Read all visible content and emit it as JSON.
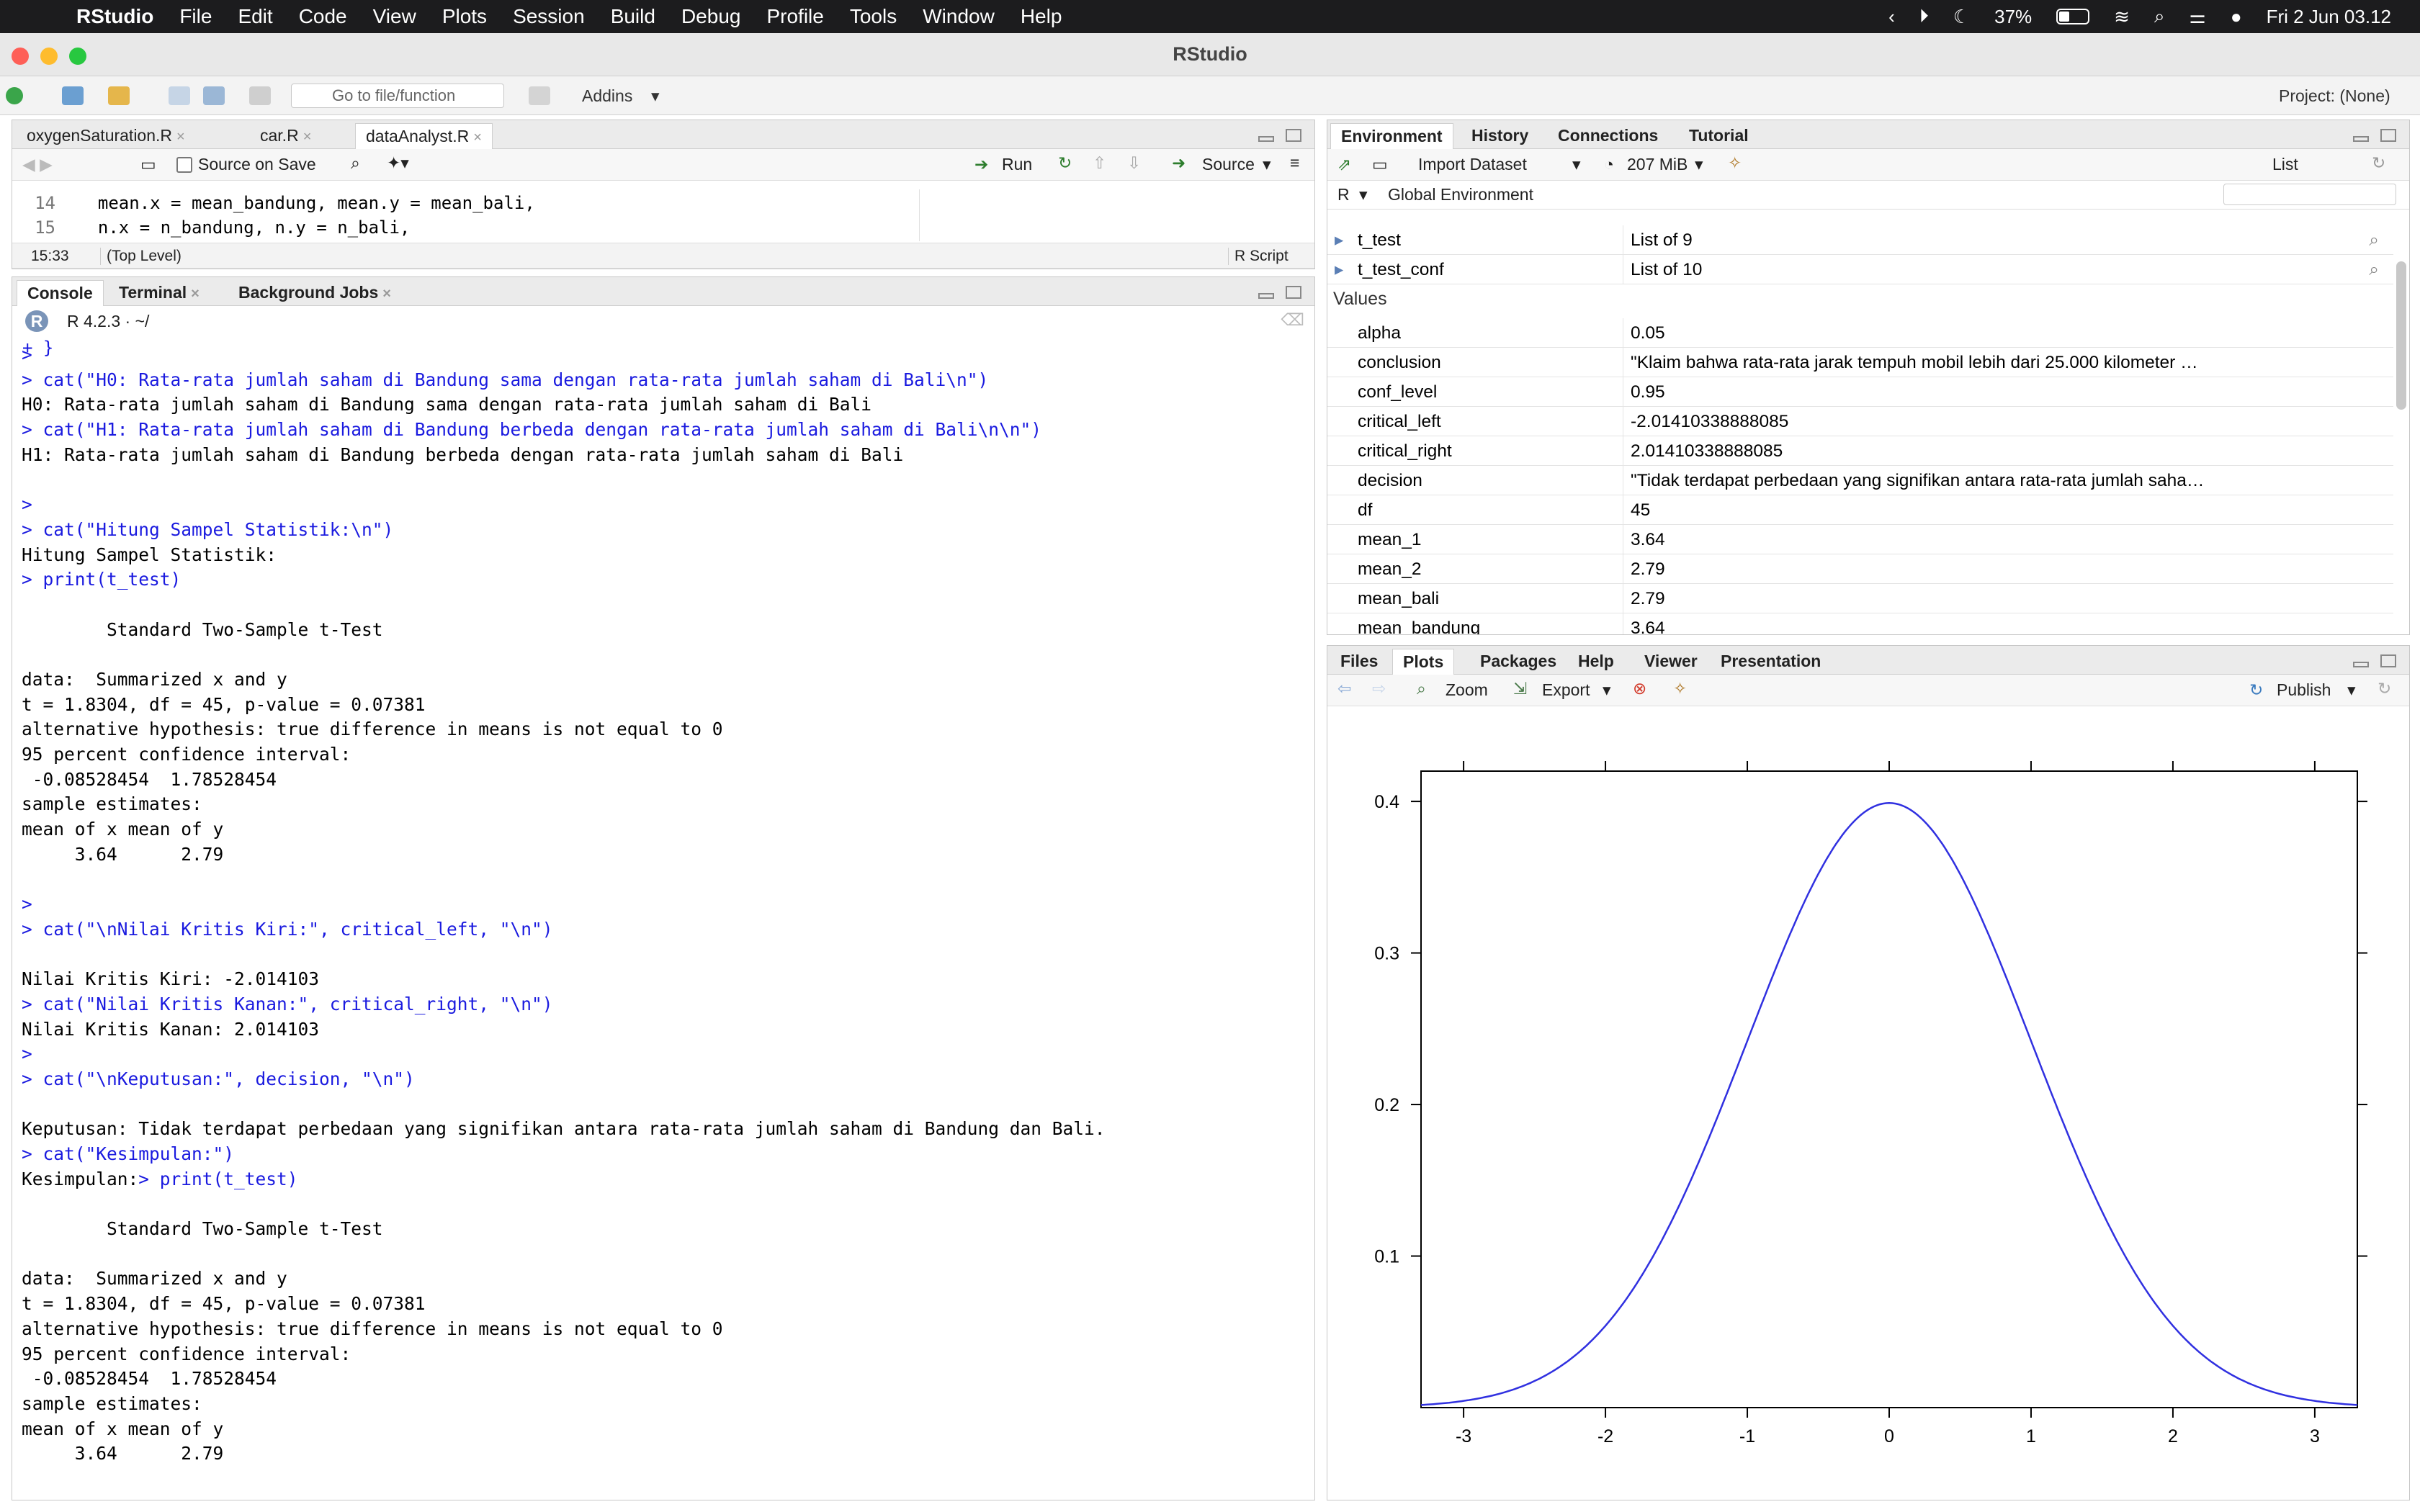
{
  "menubar": {
    "app": "RStudio",
    "items": [
      "File",
      "Edit",
      "Code",
      "View",
      "Plots",
      "Session",
      "Build",
      "Debug",
      "Profile",
      "Tools",
      "Window",
      "Help"
    ],
    "battery": "37%",
    "datetime": "Fri 2 Jun  03.12"
  },
  "window": {
    "title": "RStudio"
  },
  "toolbar": {
    "goto_placeholder": "Go to file/function",
    "addins": "Addins",
    "project": "Project: (None)"
  },
  "source": {
    "tabs": [
      "oxygenSaturation.R",
      "car.R",
      "dataAnalyst.R"
    ],
    "active_tab": "dataAnalyst.R",
    "source_on_save": "Source on Save",
    "run": "Run",
    "source_btn": "Source",
    "lines": [
      {
        "num": "14",
        "text": "  mean.x = mean_bandung, mean.y = mean_bali,"
      },
      {
        "num": "15",
        "text": "  n.x = n_bandung, n.y = n_bali,"
      }
    ],
    "cursor": "15:33",
    "scope": "(Top Level)",
    "filetype": "R Script"
  },
  "console": {
    "tabs": [
      "Console",
      "Terminal",
      "Background Jobs"
    ],
    "r_version": "R 4.2.3 · ~/",
    "lines": [
      {
        "k": "c",
        "t": ">"
      },
      {
        "k": "c",
        "t": "> cat(\"H0: Rata-rata jumlah saham di Bandung sama dengan rata-rata jumlah saham di Bali\\n\")"
      },
      {
        "k": "o",
        "t": "H0: Rata-rata jumlah saham di Bandung sama dengan rata-rata jumlah saham di Bali"
      },
      {
        "k": "c",
        "t": "> cat(\"H1: Rata-rata jumlah saham di Bandung berbeda dengan rata-rata jumlah saham di Bali\\n\\n\")"
      },
      {
        "k": "o",
        "t": "H1: Rata-rata jumlah saham di Bandung berbeda dengan rata-rata jumlah saham di Bali"
      },
      {
        "k": "o",
        "t": ""
      },
      {
        "k": "c",
        "t": ">"
      },
      {
        "k": "c",
        "t": "> cat(\"Hitung Sampel Statistik:\\n\")"
      },
      {
        "k": "o",
        "t": "Hitung Sampel Statistik:"
      },
      {
        "k": "c",
        "t": "> print(t_test)"
      },
      {
        "k": "o",
        "t": ""
      },
      {
        "k": "o",
        "t": "        Standard Two-Sample t-Test"
      },
      {
        "k": "o",
        "t": ""
      },
      {
        "k": "o",
        "t": "data:  Summarized x and y"
      },
      {
        "k": "o",
        "t": "t = 1.8304, df = 45, p-value = 0.07381"
      },
      {
        "k": "o",
        "t": "alternative hypothesis: true difference in means is not equal to 0"
      },
      {
        "k": "o",
        "t": "95 percent confidence interval:"
      },
      {
        "k": "o",
        "t": " -0.08528454  1.78528454"
      },
      {
        "k": "o",
        "t": "sample estimates:"
      },
      {
        "k": "o",
        "t": "mean of x mean of y"
      },
      {
        "k": "o",
        "t": "     3.64      2.79"
      },
      {
        "k": "o",
        "t": ""
      },
      {
        "k": "c",
        "t": ">"
      },
      {
        "k": "c",
        "t": "> cat(\"\\nNilai Kritis Kiri:\", critical_left, \"\\n\")"
      },
      {
        "k": "o",
        "t": ""
      },
      {
        "k": "o",
        "t": "Nilai Kritis Kiri: -2.014103"
      },
      {
        "k": "c",
        "t": "> cat(\"Nilai Kritis Kanan:\", critical_right, \"\\n\")"
      },
      {
        "k": "o",
        "t": "Nilai Kritis Kanan: 2.014103"
      },
      {
        "k": "c",
        "t": ">"
      },
      {
        "k": "c",
        "t": "> cat(\"\\nKeputusan:\", decision, \"\\n\")"
      },
      {
        "k": "o",
        "t": ""
      },
      {
        "k": "o",
        "t": "Keputusan: Tidak terdapat perbedaan yang signifikan antara rata-rata jumlah saham di Bandung dan Bali."
      },
      {
        "k": "c",
        "t": "> cat(\"Kesimpulan:\")"
      },
      {
        "k": "mix",
        "o": "Kesimpulan:",
        "t": "> print(t_test)"
      },
      {
        "k": "o",
        "t": ""
      },
      {
        "k": "o",
        "t": "        Standard Two-Sample t-Test"
      },
      {
        "k": "o",
        "t": ""
      },
      {
        "k": "o",
        "t": "data:  Summarized x and y"
      },
      {
        "k": "o",
        "t": "t = 1.8304, df = 45, p-value = 0.07381"
      },
      {
        "k": "o",
        "t": "alternative hypothesis: true difference in means is not equal to 0"
      },
      {
        "k": "o",
        "t": "95 percent confidence interval:"
      },
      {
        "k": "o",
        "t": " -0.08528454  1.78528454"
      },
      {
        "k": "o",
        "t": "sample estimates:"
      },
      {
        "k": "o",
        "t": "mean of x mean of y"
      },
      {
        "k": "o",
        "t": "     3.64      2.79"
      }
    ]
  },
  "environment": {
    "tabs": [
      "Environment",
      "History",
      "Connections",
      "Tutorial"
    ],
    "import_dataset": "Import Dataset",
    "memory": "207 MiB",
    "view": "List",
    "lang": "R",
    "scope": "Global Environment",
    "lists": [
      {
        "name": "t_test",
        "value": "List of  9"
      },
      {
        "name": "t_test_conf",
        "value": "List of  10"
      }
    ],
    "values_header": "Values",
    "values": [
      {
        "name": "alpha",
        "value": "0.05"
      },
      {
        "name": "conclusion",
        "value": "\"Klaim bahwa rata-rata jarak tempuh mobil lebih dari 25.000 kilometer …"
      },
      {
        "name": "conf_level",
        "value": "0.95"
      },
      {
        "name": "critical_left",
        "value": "-2.01410338888085"
      },
      {
        "name": "critical_right",
        "value": "2.01410338888085"
      },
      {
        "name": "decision",
        "value": "\"Tidak terdapat perbedaan yang signifikan antara rata-rata jumlah saha…"
      },
      {
        "name": "df",
        "value": "45"
      },
      {
        "name": "mean_1",
        "value": "3.64"
      },
      {
        "name": "mean_2",
        "value": "2.79"
      },
      {
        "name": "mean_bali",
        "value": "2.79"
      },
      {
        "name": "mean_bandung",
        "value": "3.64"
      }
    ]
  },
  "files": {
    "tabs": [
      "Files",
      "Plots",
      "Packages",
      "Help",
      "Viewer",
      "Presentation"
    ],
    "active_tab": "Plots",
    "zoom": "Zoom",
    "export": "Export",
    "publish": "Publish"
  },
  "chart_data": {
    "type": "line",
    "series": [
      {
        "function": "standard normal density",
        "color": "#3030e0"
      }
    ],
    "xlim": [
      -3.3,
      3.3
    ],
    "ylim": [
      0,
      0.42
    ],
    "x_ticks": [
      "-3",
      "-2",
      "-1",
      "0",
      "1",
      "2",
      "3"
    ],
    "y_ticks": [
      "0.1",
      "0.2",
      "0.3",
      "0.4"
    ],
    "x_tick_values": [
      -3,
      -2,
      -1,
      0,
      1,
      2,
      3
    ],
    "y_tick_values": [
      0.1,
      0.2,
      0.3,
      0.4
    ]
  }
}
